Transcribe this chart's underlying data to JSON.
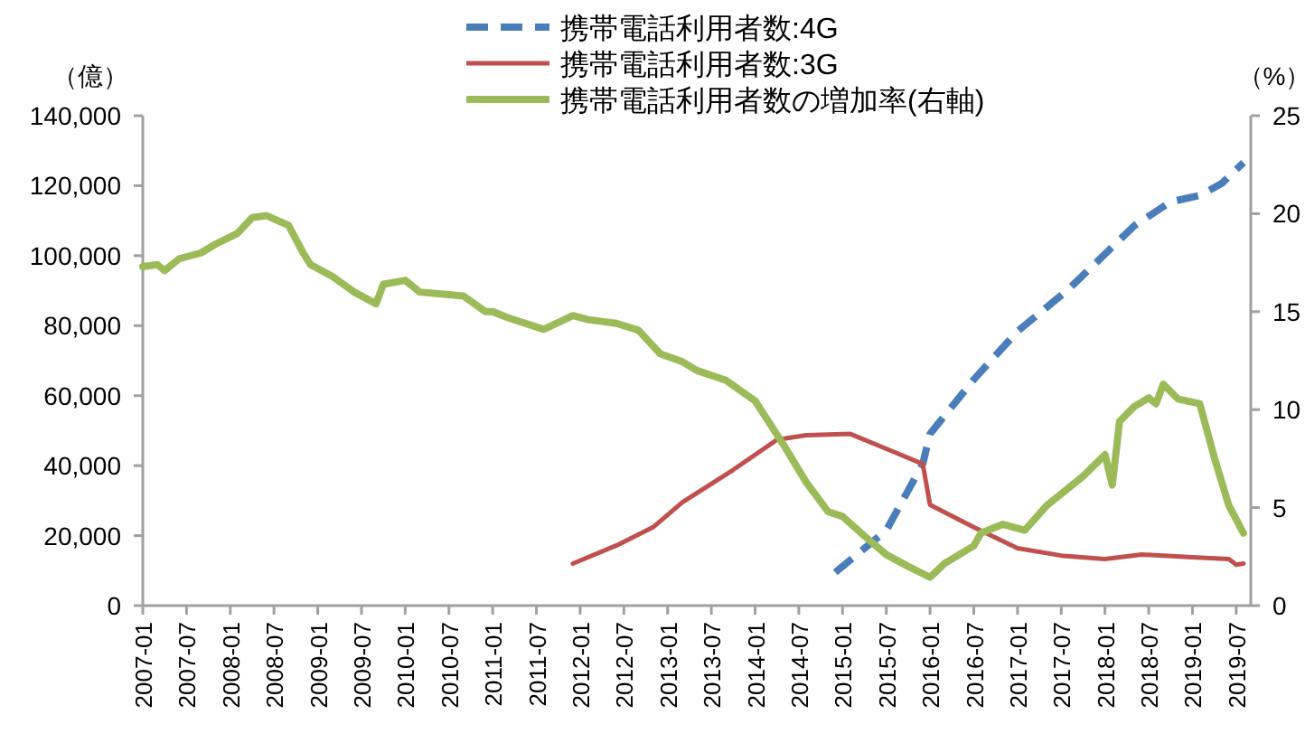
{
  "chart_data": {
    "type": "line",
    "ylabel": "（億）",
    "y2label": "（%）",
    "legend": "top",
    "grid": false,
    "marker": "none",
    "xlim": [
      "2007-01",
      "2019-09"
    ],
    "xticks": [
      "2007-01",
      "2007-07",
      "2008-01",
      "2008-07",
      "2009-01",
      "2009-07",
      "2010-01",
      "2010-07",
      "2011-01",
      "2011-07",
      "2012-01",
      "2012-07",
      "2013-01",
      "2013-07",
      "2014-01",
      "2014-07",
      "2015-01",
      "2015-07",
      "2016-01",
      "2016-07",
      "2017-01",
      "2017-07",
      "2018-01",
      "2018-07",
      "2019-01",
      "2019-07"
    ],
    "ylim": [
      0,
      140000
    ],
    "yticks": [
      0,
      {
        "value": 20000,
        "label": "20,000"
      },
      {
        "value": 40000,
        "label": "40,000"
      },
      {
        "value": 60000,
        "label": "60,000"
      },
      {
        "value": 80000,
        "label": "80,000"
      },
      {
        "value": 100000,
        "label": "100,000"
      },
      {
        "value": 120000,
        "label": "120,000"
      },
      {
        "value": 140000,
        "label": "140,000"
      }
    ],
    "y2lim": [
      0,
      25
    ],
    "y2ticks": [
      0,
      5,
      10,
      15,
      20,
      25
    ],
    "series": [
      {
        "name": "携帯電話利用者数:4G",
        "color": "#4a7ebb",
        "line_style": "dashed",
        "x": [
          "2014-12",
          "2015-07",
          "2015-12",
          "2016-01",
          "2016-07",
          "2017-01",
          "2017-08",
          "2018-02",
          "2018-05",
          "2018-10",
          "2019-02",
          "2019-05",
          "2019-08"
        ],
        "values": [
          9500,
          21500,
          40500,
          49100,
          64600,
          78400,
          90400,
          102500,
          108500,
          115400,
          117200,
          120600,
          126600
        ]
      },
      {
        "name": "携帯電話利用者数:3G",
        "color": "#c0504d",
        "line_style": "solid",
        "x": [
          "2011-12",
          "2012-06",
          "2012-11",
          "2013-03",
          "2013-10",
          "2014-04",
          "2014-08",
          "2015-02",
          "2015-07",
          "2015-12",
          "2016-01",
          "2016-07",
          "2017-01",
          "2017-07",
          "2018-01",
          "2018-06",
          "2019-01",
          "2019-06",
          "2019-07",
          "2019-08"
        ],
        "values": [
          12000,
          17200,
          22400,
          29500,
          38800,
          47400,
          48700,
          49100,
          44800,
          40500,
          28800,
          22400,
          16400,
          14300,
          13300,
          14600,
          13800,
          13300,
          11700,
          12000
        ]
      },
      {
        "name": "携帯電話利用者数の増加率(右軸)",
        "color": "#9bbb59",
        "line_style": "solid",
        "axis": "y2",
        "x": [
          "2007-01",
          "2007-03",
          "2007-04",
          "2007-06",
          "2007-09",
          "2007-11",
          "2008-02",
          "2008-04",
          "2008-06",
          "2008-09",
          "2008-11",
          "2008-12",
          "2009-03",
          "2009-06",
          "2009-09",
          "2009-10",
          "2010-01",
          "2010-03",
          "2010-06",
          "2010-09",
          "2010-12",
          "2011-01",
          "2011-03",
          "2011-08",
          "2011-12",
          "2012-02",
          "2012-04",
          "2012-06",
          "2012-09",
          "2012-12",
          "2013-03",
          "2013-05",
          "2013-09",
          "2014-01",
          "2014-05",
          "2014-08",
          "2014-11",
          "2015-01",
          "2015-04",
          "2015-07",
          "2015-10",
          "2016-01",
          "2016-03",
          "2016-07",
          "2016-08",
          "2016-11",
          "2017-02",
          "2017-05",
          "2017-10",
          "2018-01",
          "2018-02",
          "2018-03",
          "2018-05",
          "2018-07",
          "2018-08",
          "2018-09",
          "2018-11",
          "2019-02",
          "2019-04",
          "2019-06",
          "2019-08"
        ],
        "values": [
          17.3,
          17.4,
          17.1,
          17.7,
          18.0,
          18.45,
          19.0,
          19.8,
          19.9,
          19.4,
          18.0,
          17.4,
          16.8,
          16.0,
          15.4,
          16.4,
          16.6,
          16.0,
          15.9,
          15.8,
          15.0,
          15.0,
          14.7,
          14.1,
          14.8,
          14.6,
          14.5,
          14.4,
          14.05,
          12.85,
          12.45,
          12.0,
          11.5,
          10.45,
          8.15,
          6.3,
          4.8,
          4.55,
          3.55,
          2.6,
          2.0,
          1.45,
          2.15,
          3.05,
          3.7,
          4.15,
          3.85,
          5.1,
          6.6,
          7.7,
          6.15,
          9.4,
          10.15,
          10.6,
          10.3,
          11.3,
          10.55,
          10.3,
          7.55,
          5.1,
          3.7
        ]
      }
    ]
  }
}
